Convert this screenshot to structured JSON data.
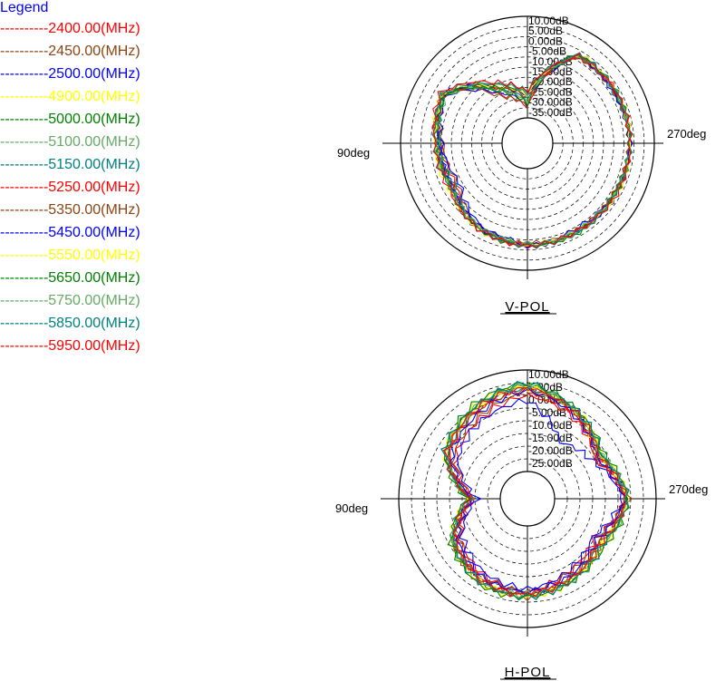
{
  "legend": {
    "title": "Legend",
    "entries": [
      {
        "label": "----------2400.00(MHz)",
        "color": "#ff0000"
      },
      {
        "label": "----------2450.00(MHz)",
        "color": "#8b4513"
      },
      {
        "label": "----------2500.00(MHz)",
        "color": "#0000ff"
      },
      {
        "label": "----------4900.00(MHz)",
        "color": "#ffff00"
      },
      {
        "label": "----------5000.00(MHz)",
        "color": "#008000"
      },
      {
        "label": "----------5100.00(MHz)",
        "color": "#66aa66"
      },
      {
        "label": "----------5150.00(MHz)",
        "color": "#008080"
      },
      {
        "label": "----------5250.00(MHz)",
        "color": "#ff0000"
      },
      {
        "label": "----------5350.00(MHz)",
        "color": "#8b4513"
      },
      {
        "label": "----------5450.00(MHz)",
        "color": "#0000ff"
      },
      {
        "label": "----------5550.00(MHz)",
        "color": "#ffff00"
      },
      {
        "label": "----------5650.00(MHz)",
        "color": "#008000"
      },
      {
        "label": "----------5750.00(MHz)",
        "color": "#66aa66"
      },
      {
        "label": "----------5850.00(MHz)",
        "color": "#008080"
      },
      {
        "label": "----------5950.00(MHz)",
        "color": "#ff0000"
      }
    ]
  },
  "chart_data": [
    {
      "type": "polar",
      "title": "V-POL",
      "angle_labels": [
        "90deg",
        "270deg"
      ],
      "ring_labels": [
        "10.00dB",
        "5.00dB",
        "0.00dB",
        "-5.00dB",
        "-10.00dB",
        "-15.00dB",
        "-20.00dB",
        "-25.00dB",
        "-30.00dB",
        "-35.00dB"
      ],
      "rlim_db": [
        -40,
        10
      ],
      "grid": true,
      "series_angles_deg": [
        0,
        30,
        60,
        90,
        120,
        150,
        180,
        210,
        240,
        270,
        300,
        330
      ],
      "series_gain_db": {
        "2400.00(MHz)": [
          -35,
          -25,
          -4,
          -10,
          -12,
          -4,
          -2,
          -3,
          -3,
          -2,
          -2,
          -3
        ],
        "2450.00(MHz)": [
          -34,
          -26,
          -5,
          -11,
          -13,
          -5,
          -3,
          -3,
          -3,
          -2,
          -2,
          -3
        ],
        "2500.00(MHz)": [
          -33,
          -24,
          -6,
          -10,
          -14,
          -6,
          -3,
          -4,
          -3,
          -2,
          -3,
          -3
        ],
        "4900.00(MHz)": [
          -32,
          -22,
          -5,
          -8,
          -9,
          -5,
          -3,
          -3,
          -3,
          -2,
          -2,
          -2
        ],
        "5000.00(MHz)": [
          -33,
          -23,
          -5,
          -9,
          -10,
          -4,
          -2,
          -3,
          -3,
          -2,
          -2,
          -3
        ],
        "5100.00(MHz)": [
          -32,
          -22,
          -6,
          -9,
          -11,
          -4,
          -3,
          -2,
          -2,
          -2,
          -2,
          -3
        ],
        "5150.00(MHz)": [
          -31,
          -22,
          -5,
          -9,
          -11,
          -5,
          -2,
          -3,
          -3,
          -2,
          -3,
          -3
        ],
        "5250.00(MHz)": [
          -30,
          -21,
          -4,
          -8,
          -10,
          -4,
          -2,
          -3,
          -3,
          -2,
          -2,
          -3
        ],
        "5350.00(MHz)": [
          -30,
          -21,
          -5,
          -8,
          -9,
          -4,
          -3,
          -3,
          -3,
          -2,
          -3,
          -3
        ],
        "5450.00(MHz)": [
          -29,
          -20,
          -4,
          -9,
          -10,
          -5,
          -2,
          -3,
          -2,
          -2,
          -3,
          -2
        ],
        "5550.00(MHz)": [
          -29,
          -20,
          -4,
          -7,
          -8,
          -4,
          -2,
          -3,
          -2,
          -2,
          -2,
          -2
        ],
        "5650.00(MHz)": [
          -28,
          -21,
          -5,
          -8,
          -9,
          -4,
          -2,
          -2,
          -3,
          -2,
          -2,
          -2
        ],
        "5750.00(MHz)": [
          -28,
          -19,
          -4,
          -8,
          -9,
          -5,
          -3,
          -3,
          -3,
          -2,
          -2,
          -3
        ],
        "5850.00(MHz)": [
          -27,
          -19,
          -4,
          -7,
          -9,
          -4,
          -2,
          -2,
          -3,
          -2,
          -2,
          -2
        ],
        "5950.00(MHz)": [
          -27,
          -18,
          -3,
          -7,
          -8,
          -4,
          -2,
          -3,
          -2,
          -2,
          -2,
          -3
        ]
      }
    },
    {
      "type": "polar",
      "title": "H-POL",
      "angle_labels": [
        "90deg",
        "270deg"
      ],
      "ring_labels": [
        "10.00dB",
        "5.00dB",
        "0.00dB",
        "-5.00dB",
        "-10.00dB",
        "-15.00dB",
        "-20.00dB",
        "-25.00dB"
      ],
      "rlim_db": [
        -30,
        10
      ],
      "grid": true,
      "series_angles_deg": [
        0,
        30,
        60,
        90,
        120,
        150,
        180,
        210,
        240,
        270,
        300,
        330
      ],
      "series_gain_db": {
        "2400.00(MHz)": [
          0,
          -4,
          -8,
          -20,
          -10,
          -6,
          -4,
          -8,
          -10,
          -2,
          -10,
          -4
        ],
        "2450.00(MHz)": [
          1,
          -3,
          -7,
          -19,
          -9,
          -5,
          -4,
          -7,
          -9,
          -2,
          -9,
          -3
        ],
        "2500.00(MHz)": [
          -2,
          -5,
          -9,
          -21,
          -11,
          -7,
          -5,
          -8,
          -11,
          -3,
          -11,
          -15
        ],
        "4900.00(MHz)": [
          3,
          0,
          -4,
          -18,
          -7,
          -3,
          -3,
          -5,
          -7,
          -1,
          -8,
          -2
        ],
        "5000.00(MHz)": [
          4,
          1,
          -3,
          -18,
          -6,
          -3,
          -2,
          -4,
          -6,
          -1,
          -7,
          -1
        ],
        "5100.00(MHz)": [
          4,
          0,
          -4,
          -17,
          -7,
          -4,
          -3,
          -5,
          -7,
          -1,
          -7,
          -2
        ],
        "5150.00(MHz)": [
          3,
          0,
          -5,
          -18,
          -8,
          -4,
          -3,
          -5,
          -8,
          -2,
          -8,
          -2
        ],
        "5250.00(MHz)": [
          2,
          -1,
          -5,
          -19,
          -8,
          -4,
          -3,
          -6,
          -8,
          -2,
          -9,
          -3
        ],
        "5350.00(MHz)": [
          3,
          -1,
          -4,
          -18,
          -7,
          -3,
          -2,
          -5,
          -7,
          -1,
          -8,
          -2
        ],
        "5450.00(MHz)": [
          2,
          -2,
          -6,
          -19,
          -9,
          -5,
          -4,
          -6,
          -9,
          -2,
          -9,
          -3
        ],
        "5550.00(MHz)": [
          4,
          1,
          -3,
          -17,
          -6,
          -3,
          -2,
          -4,
          -6,
          -1,
          -7,
          -1
        ],
        "5650.00(MHz)": [
          5,
          2,
          -3,
          -17,
          -6,
          -2,
          -2,
          -4,
          -5,
          -1,
          -6,
          -1
        ],
        "5750.00(MHz)": [
          4,
          1,
          -4,
          -18,
          -7,
          -3,
          -3,
          -4,
          -6,
          -1,
          -7,
          -2
        ],
        "5850.00(MHz)": [
          5,
          1,
          -3,
          -18,
          -7,
          -3,
          -2,
          -4,
          -6,
          -1,
          -7,
          -1
        ],
        "5950.00(MHz)": [
          3,
          0,
          -4,
          -18,
          -8,
          -4,
          -3,
          -5,
          -7,
          -2,
          -8,
          -2
        ]
      }
    }
  ]
}
